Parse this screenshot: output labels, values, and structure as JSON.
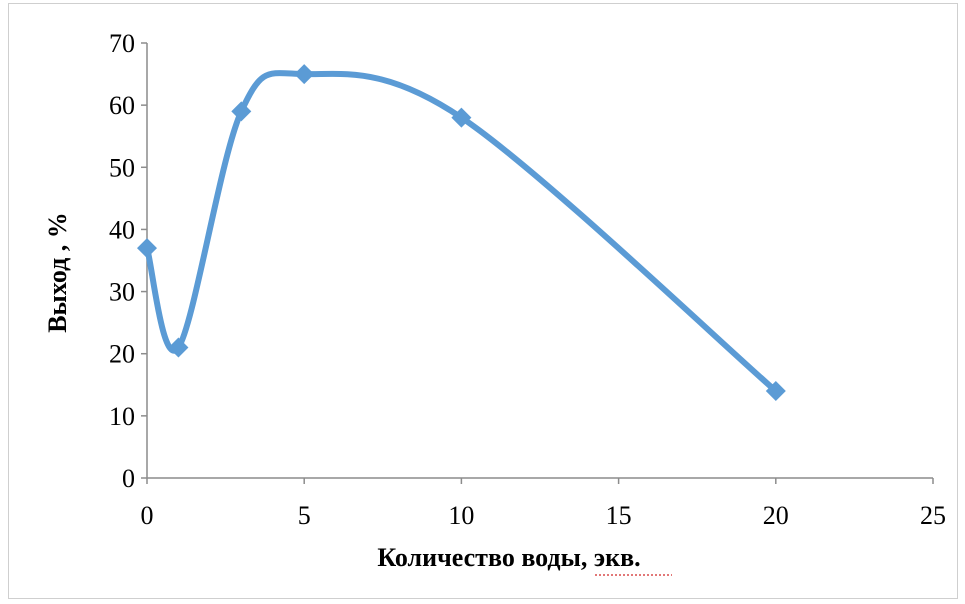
{
  "chart_data": {
    "type": "line",
    "smooth": true,
    "marker": "diamond",
    "color": "#5b9bd5",
    "xlabel": "Количество воды, экв.",
    "ylabel": "Выход , %",
    "xlim": [
      0,
      25
    ],
    "ylim": [
      0,
      70
    ],
    "x_ticks": [
      "0",
      "5",
      "10",
      "15",
      "20",
      "25"
    ],
    "y_ticks": [
      "0",
      "10",
      "20",
      "30",
      "40",
      "50",
      "60",
      "70"
    ],
    "grid": false,
    "legend": "none",
    "series": [
      {
        "x": [
          0,
          1,
          3,
          5,
          10,
          20
        ],
        "y": [
          37,
          21,
          59,
          65,
          58,
          14
        ]
      }
    ]
  }
}
